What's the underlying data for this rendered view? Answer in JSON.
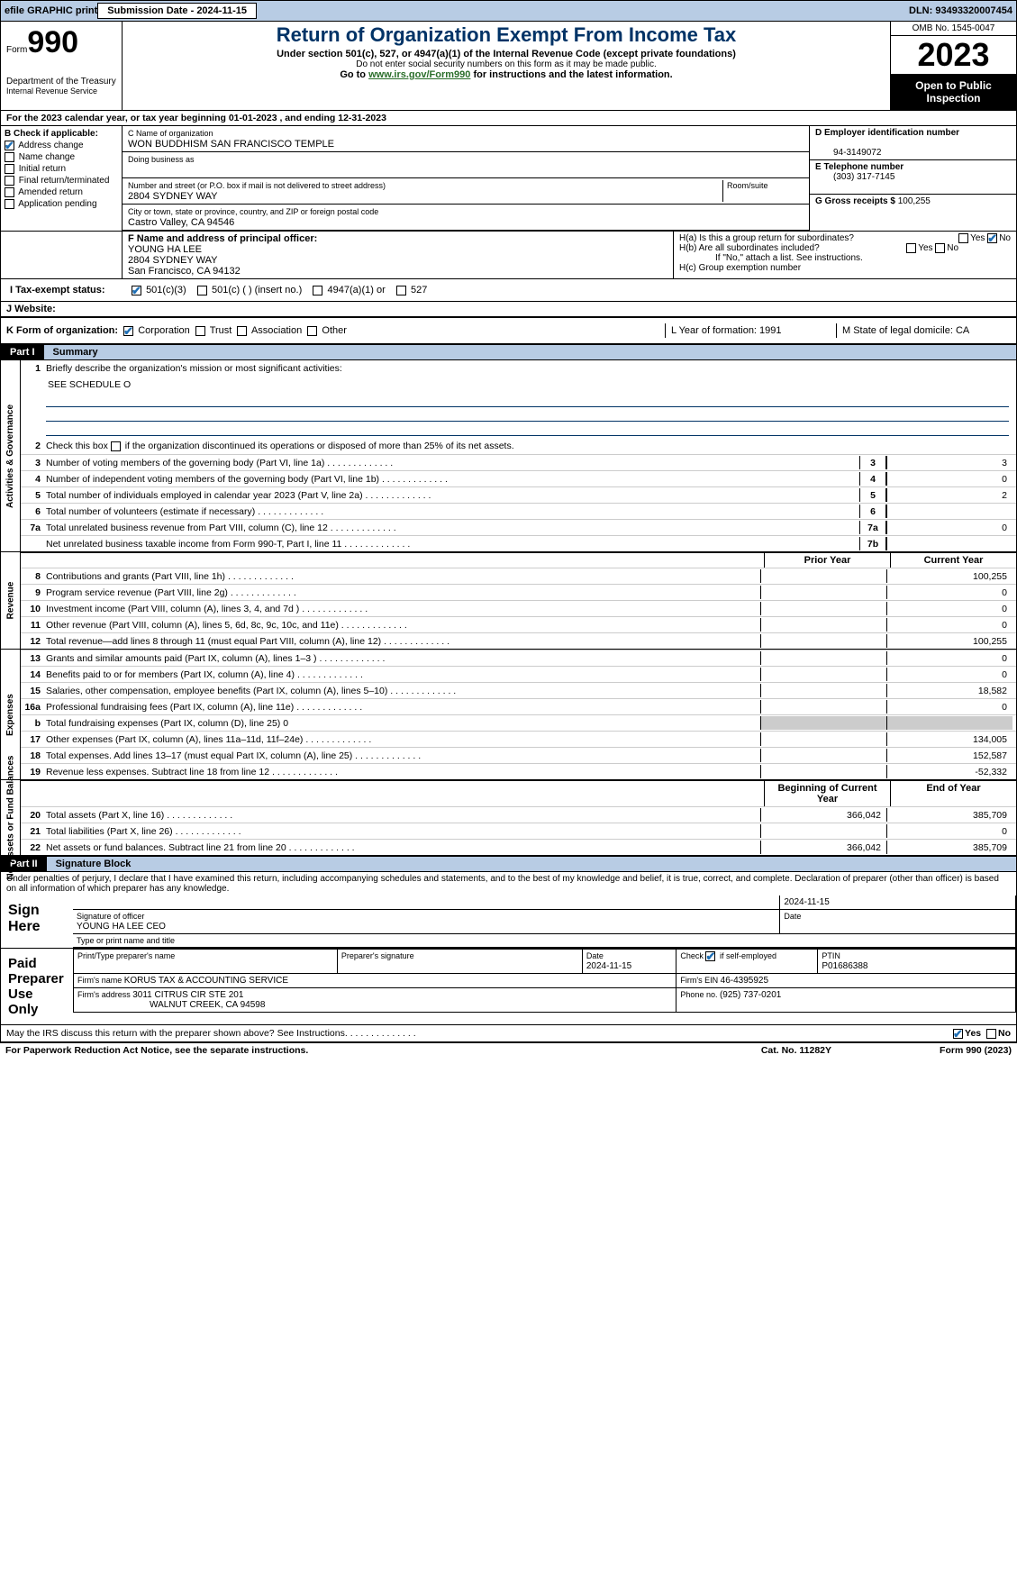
{
  "topbar": {
    "efile": "efile GRAPHIC print",
    "submission_label": "Submission Date - 2024-11-15",
    "dln_label": "DLN: 93493320007454"
  },
  "header": {
    "form_label": "Form",
    "form_number": "990",
    "title": "Return of Organization Exempt From Income Tax",
    "subtitle": "Under section 501(c), 527, or 4947(a)(1) of the Internal Revenue Code (except private foundations)",
    "warning": "Do not enter social security numbers on this form as it may be made public.",
    "goto_prefix": "Go to ",
    "goto_link": "www.irs.gov/Form990",
    "goto_suffix": " for instructions and the latest information.",
    "dept": "Department of the Treasury",
    "irs": "Internal Revenue Service",
    "omb": "OMB No. 1545-0047",
    "year": "2023",
    "open": "Open to Public Inspection"
  },
  "line_a": "For the 2023 calendar year, or tax year beginning 01-01-2023    , and ending 12-31-2023",
  "box_b": {
    "label": "B Check if applicable:",
    "items": [
      {
        "label": "Address change",
        "checked": true
      },
      {
        "label": "Name change",
        "checked": false
      },
      {
        "label": "Initial return",
        "checked": false
      },
      {
        "label": "Final return/terminated",
        "checked": false
      },
      {
        "label": "Amended return",
        "checked": false
      },
      {
        "label": "Application pending",
        "checked": false
      }
    ]
  },
  "box_c": {
    "name_label": "C Name of organization",
    "name": "WON BUDDHISM SAN FRANCISCO TEMPLE",
    "dba_label": "Doing business as",
    "addr_label": "Number and street (or P.O. box if mail is not delivered to street address)",
    "room_label": "Room/suite",
    "addr": "2804 SYDNEY WAY",
    "city_label": "City or town, state or province, country, and ZIP or foreign postal code",
    "city": "Castro Valley, CA  94546"
  },
  "box_d": {
    "label": "D Employer identification number",
    "value": "94-3149072"
  },
  "box_e": {
    "label": "E Telephone number",
    "value": "(303) 317-7145"
  },
  "box_g": {
    "label": "G Gross receipts $",
    "value": "100,255"
  },
  "box_f": {
    "label": "F  Name and address of principal officer:",
    "name": "YOUNG HA LEE",
    "addr1": "2804 SYDNEY WAY",
    "addr2": "San Francisco, CA  94132"
  },
  "box_h": {
    "a": "H(a)  Is this a group return for subordinates?",
    "a_yes": "Yes",
    "a_no": "No",
    "a_checked": "no",
    "b": "H(b)  Are all subordinates included?",
    "b_yes": "Yes",
    "b_no": "No",
    "b_note": "If \"No,\" attach a list. See instructions.",
    "c": "H(c)  Group exemption number"
  },
  "line_i": {
    "label": "I   Tax-exempt status:",
    "opts": [
      {
        "label": "501(c)(3)",
        "checked": true
      },
      {
        "label": "501(c) (  ) (insert no.)",
        "checked": false
      },
      {
        "label": "4947(a)(1) or",
        "checked": false
      },
      {
        "label": "527",
        "checked": false
      }
    ]
  },
  "line_j": "J   Website:",
  "line_k": {
    "label": "K Form of organization:",
    "opts": [
      {
        "label": "Corporation",
        "checked": true
      },
      {
        "label": "Trust",
        "checked": false
      },
      {
        "label": "Association",
        "checked": false
      },
      {
        "label": "Other",
        "checked": false
      }
    ]
  },
  "line_l": "L Year of formation: 1991",
  "line_m": "M State of legal domicile: CA",
  "part1": {
    "label": "Part I",
    "title": "Summary",
    "v1": "Activities & Governance",
    "v2": "Revenue",
    "v3": "Expenses",
    "v4": "Net Assets or Fund Balances",
    "l1": "Briefly describe the organization's mission or most significant activities:",
    "l1v": "SEE SCHEDULE O",
    "l2": "Check this box       if the organization discontinued its operations or disposed of more than 25% of its net assets.",
    "lines_gov": [
      {
        "n": "3",
        "t": "Number of voting members of the governing body (Part VI, line 1a)",
        "b": "3",
        "v": "3"
      },
      {
        "n": "4",
        "t": "Number of independent voting members of the governing body (Part VI, line 1b)",
        "b": "4",
        "v": "0"
      },
      {
        "n": "5",
        "t": "Total number of individuals employed in calendar year 2023 (Part V, line 2a)",
        "b": "5",
        "v": "2"
      },
      {
        "n": "6",
        "t": "Total number of volunteers (estimate if necessary)",
        "b": "6",
        "v": ""
      },
      {
        "n": "7a",
        "t": "Total unrelated business revenue from Part VIII, column (C), line 12",
        "b": "7a",
        "v": "0"
      },
      {
        "n": "",
        "t": "Net unrelated business taxable income from Form 990-T, Part I, line 11",
        "b": "7b",
        "v": ""
      }
    ],
    "hdr_prior": "Prior Year",
    "hdr_curr": "Current Year",
    "lines_rev": [
      {
        "n": "8",
        "t": "Contributions and grants (Part VIII, line 1h)",
        "p": "",
        "c": "100,255"
      },
      {
        "n": "9",
        "t": "Program service revenue (Part VIII, line 2g)",
        "p": "",
        "c": "0"
      },
      {
        "n": "10",
        "t": "Investment income (Part VIII, column (A), lines 3, 4, and 7d )",
        "p": "",
        "c": "0"
      },
      {
        "n": "11",
        "t": "Other revenue (Part VIII, column (A), lines 5, 6d, 8c, 9c, 10c, and 11e)",
        "p": "",
        "c": "0"
      },
      {
        "n": "12",
        "t": "Total revenue—add lines 8 through 11 (must equal Part VIII, column (A), line 12)",
        "p": "",
        "c": "100,255"
      }
    ],
    "lines_exp": [
      {
        "n": "13",
        "t": "Grants and similar amounts paid (Part IX, column (A), lines 1–3 )",
        "p": "",
        "c": "0"
      },
      {
        "n": "14",
        "t": "Benefits paid to or for members (Part IX, column (A), line 4)",
        "p": "",
        "c": "0"
      },
      {
        "n": "15",
        "t": "Salaries, other compensation, employee benefits (Part IX, column (A), lines 5–10)",
        "p": "",
        "c": "18,582"
      },
      {
        "n": "16a",
        "t": "Professional fundraising fees (Part IX, column (A), line 11e)",
        "p": "",
        "c": "0"
      },
      {
        "n": "b",
        "t": "Total fundraising expenses (Part IX, column (D), line 25) 0",
        "p": "g",
        "c": "g",
        "special": true
      },
      {
        "n": "17",
        "t": "Other expenses (Part IX, column (A), lines 11a–11d, 11f–24e)",
        "p": "",
        "c": "134,005"
      },
      {
        "n": "18",
        "t": "Total expenses. Add lines 13–17 (must equal Part IX, column (A), line 25)",
        "p": "",
        "c": "152,587"
      },
      {
        "n": "19",
        "t": "Revenue less expenses. Subtract line 18 from line 12",
        "p": "",
        "c": "-52,332"
      }
    ],
    "hdr_beg": "Beginning of Current Year",
    "hdr_end": "End of Year",
    "lines_na": [
      {
        "n": "20",
        "t": "Total assets (Part X, line 16)",
        "p": "366,042",
        "c": "385,709"
      },
      {
        "n": "21",
        "t": "Total liabilities (Part X, line 26)",
        "p": "",
        "c": "0"
      },
      {
        "n": "22",
        "t": "Net assets or fund balances. Subtract line 21 from line 20",
        "p": "366,042",
        "c": "385,709"
      }
    ]
  },
  "part2": {
    "label": "Part II",
    "title": "Signature Block"
  },
  "perjury": "Under penalties of perjury, I declare that I have examined this return, including accompanying schedules and statements, and to the best of my knowledge and belief, it is true, correct, and complete. Declaration of preparer (other than officer) is based on all information of which preparer has any knowledge.",
  "sign": {
    "left": "Sign Here",
    "date": "2024-11-15",
    "sig_label": "Signature of officer",
    "name": "YOUNG HA LEE CEO",
    "type_label": "Type or print name and title",
    "date_label": "Date"
  },
  "paid": {
    "left": "Paid Preparer Use Only",
    "h1": "Print/Type preparer's name",
    "h2": "Preparer's signature",
    "h3": "Date",
    "h3v": "2024-11-15",
    "h4": "Check        if self-employed",
    "h5": "PTIN",
    "h5v": "P01686388",
    "firm_label": "Firm's name   ",
    "firm": "KORUS TAX & ACCOUNTING SERVICE",
    "ein_label": "Firm's EIN  ",
    "ein": "46-4395925",
    "addr_label": "Firm's address ",
    "addr1": "3011 CITRUS CIR STE 201",
    "addr2": "WALNUT CREEK, CA  94598",
    "phone_label": "Phone no. ",
    "phone": "(925) 737-0201"
  },
  "discuss": {
    "text": "May the IRS discuss this return with the preparer shown above? See Instructions.",
    "yes": "Yes",
    "no": "No"
  },
  "footer": {
    "left": "For Paperwork Reduction Act Notice, see the separate instructions.",
    "mid": "Cat. No. 11282Y",
    "right": "Form 990 (2023)"
  }
}
